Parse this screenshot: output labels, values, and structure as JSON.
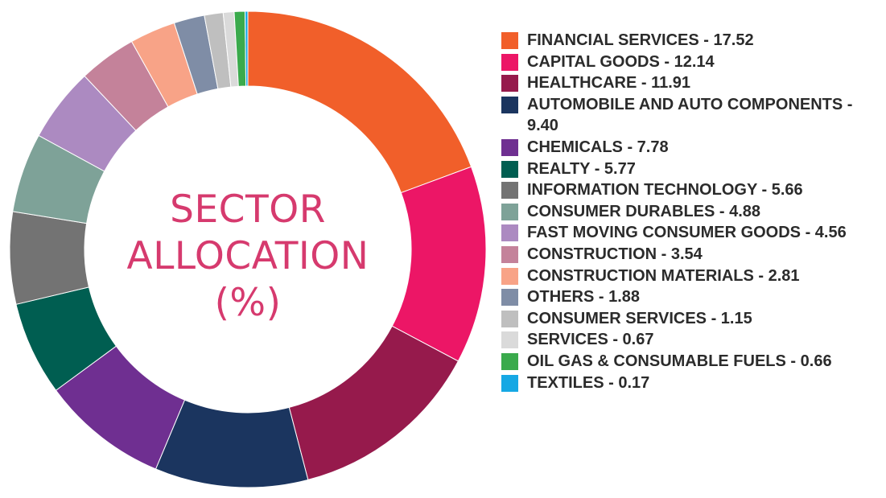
{
  "center_title": {
    "line1": "SECTOR",
    "line2": "ALLOCATION",
    "line3": "(%)"
  },
  "legend": [
    {
      "label": "FINANCIAL SERVICES - 17.52",
      "color": "#f15f2a"
    },
    {
      "label": "CAPITAL GOODS - 12.14",
      "color": "#ec1666"
    },
    {
      "label": "HEALTHCARE - 11.91",
      "color": "#961a4c"
    },
    {
      "label": "AUTOMOBILE AND AUTO COMPONENTS - 9.40",
      "color": "#1b355f"
    },
    {
      "label": "CHEMICALS - 7.78",
      "color": "#6f2f91"
    },
    {
      "label": "REALTY - 5.77",
      "color": "#005e51"
    },
    {
      "label": "INFORMATION TECHNOLOGY - 5.66",
      "color": "#737373"
    },
    {
      "label": "CONSUMER DURABLES - 4.88",
      "color": "#7ea298"
    },
    {
      "label": "FAST MOVING CONSUMER GOODS - 4.56",
      "color": "#ac8ac1"
    },
    {
      "label": "CONSTRUCTION - 3.54",
      "color": "#c4829a"
    },
    {
      "label": "CONSTRUCTION MATERIALS - 2.81",
      "color": "#f8a387"
    },
    {
      "label": "OTHERS - 1.88",
      "color": "#7f8da6"
    },
    {
      "label": "CONSUMER SERVICES - 1.15",
      "color": "#bfbfbf"
    },
    {
      "label": "SERVICES - 0.67",
      "color": "#dadada"
    },
    {
      "label": "OIL GAS & CONSUMABLE FUELS - 0.66",
      "color": "#3aaa4c"
    },
    {
      "label": "TEXTILES - 0.17",
      "color": "#16a8e4"
    }
  ],
  "chart_data": {
    "type": "pie",
    "style": "donut",
    "title": "SECTOR ALLOCATION (%)",
    "categories": [
      "FINANCIAL SERVICES",
      "CAPITAL GOODS",
      "HEALTHCARE",
      "AUTOMOBILE AND AUTO COMPONENTS",
      "CHEMICALS",
      "REALTY",
      "INFORMATION TECHNOLOGY",
      "CONSUMER DURABLES",
      "FAST MOVING CONSUMER GOODS",
      "CONSTRUCTION",
      "CONSTRUCTION MATERIALS",
      "OTHERS",
      "CONSUMER SERVICES",
      "SERVICES",
      "OIL GAS & CONSUMABLE FUELS",
      "TEXTILES"
    ],
    "values": [
      17.52,
      12.14,
      11.91,
      9.4,
      7.78,
      5.77,
      5.66,
      4.88,
      4.56,
      3.54,
      2.81,
      1.88,
      1.15,
      0.67,
      0.66,
      0.17
    ],
    "colors": [
      "#f15f2a",
      "#ec1666",
      "#961a4c",
      "#1b355f",
      "#6f2f91",
      "#005e51",
      "#737373",
      "#7ea298",
      "#ac8ac1",
      "#c4829a",
      "#f8a387",
      "#7f8da6",
      "#bfbfbf",
      "#dadada",
      "#3aaa4c",
      "#16a8e4"
    ],
    "legend_position": "right",
    "direction": "clockwise",
    "start": "top"
  }
}
